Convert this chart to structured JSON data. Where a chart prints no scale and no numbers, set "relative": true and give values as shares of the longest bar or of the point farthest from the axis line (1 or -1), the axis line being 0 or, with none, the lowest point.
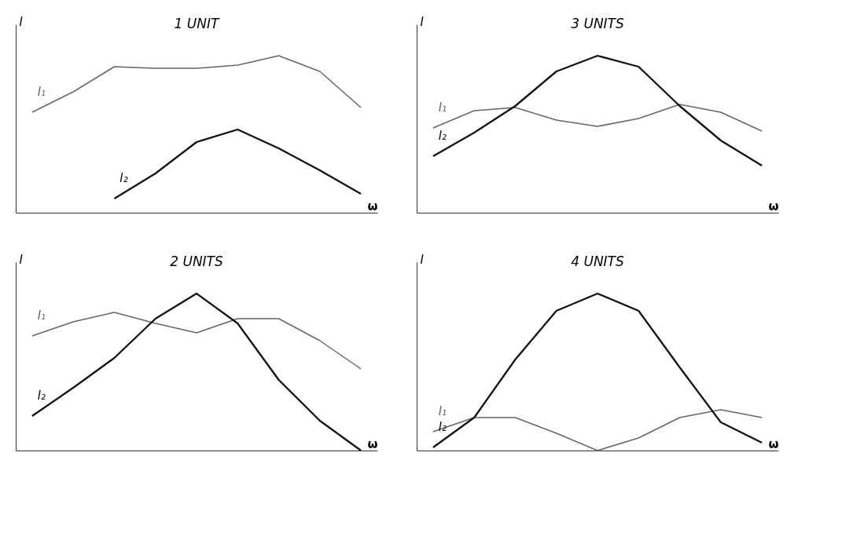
{
  "chart_data": [
    {
      "type": "line",
      "title": "1 UNIT",
      "xlabel": "ω",
      "ylabel": "I",
      "relative": true,
      "grid": false,
      "legend": false,
      "categories": [
        null,
        null,
        null,
        null,
        null,
        null,
        null,
        null,
        null
      ],
      "series": [
        {
          "name": "I₁",
          "color": "#666666",
          "values": [
            0.64,
            0.77,
            0.93,
            0.92,
            0.92,
            0.94,
            1,
            0.9,
            0.67
          ]
        },
        {
          "name": "I₂",
          "color": "#111111",
          "values": [
            null,
            null,
            0.09,
            0.25,
            0.45,
            0.53,
            0.41,
            0.27,
            0.12
          ]
        }
      ]
    },
    {
      "type": "line",
      "title": "3 UNITS",
      "xlabel": "ω",
      "ylabel": "I",
      "relative": true,
      "grid": false,
      "legend": false,
      "categories": [
        null,
        null,
        null,
        null,
        null,
        null,
        null,
        null,
        null
      ],
      "series": [
        {
          "name": "I₁",
          "color": "#666666",
          "values": [
            0.54,
            0.65,
            0.67,
            0.59,
            0.55,
            0.6,
            0.69,
            0.64,
            0.52
          ]
        },
        {
          "name": "I₂",
          "color": "#111111",
          "values": [
            0.36,
            0.51,
            0.68,
            0.9,
            1,
            0.93,
            0.68,
            0.46,
            0.3
          ]
        }
      ]
    },
    {
      "type": "line",
      "title": "2 UNITS",
      "xlabel": "ω",
      "ylabel": "I",
      "relative": true,
      "grid": false,
      "legend": false,
      "categories": [
        null,
        null,
        null,
        null,
        null,
        null,
        null,
        null,
        null
      ],
      "series": [
        {
          "name": "I₁",
          "color": "#666666",
          "values": [
            0.73,
            0.82,
            0.88,
            0.81,
            0.75,
            0.84,
            0.84,
            0.7,
            0.52
          ]
        },
        {
          "name": "I₂",
          "color": "#111111",
          "values": [
            0.22,
            0.4,
            0.59,
            0.84,
            1,
            0.81,
            0.45,
            0.19,
            0
          ]
        }
      ]
    },
    {
      "type": "line",
      "title": "4 UNITS",
      "xlabel": "ω",
      "ylabel": "I",
      "relative": true,
      "grid": false,
      "legend": false,
      "categories": [
        null,
        null,
        null,
        null,
        null,
        null,
        null,
        null,
        null
      ],
      "series": [
        {
          "name": "I₁",
          "color": "#666666",
          "values": [
            0.12,
            0.21,
            0.21,
            0.11,
            0,
            0.08,
            0.21,
            0.26,
            0.21
          ]
        },
        {
          "name": "I₂",
          "color": "#111111",
          "values": [
            0.02,
            0.21,
            0.58,
            0.89,
            1,
            0.89,
            0.53,
            0.18,
            0.05
          ]
        }
      ]
    }
  ]
}
